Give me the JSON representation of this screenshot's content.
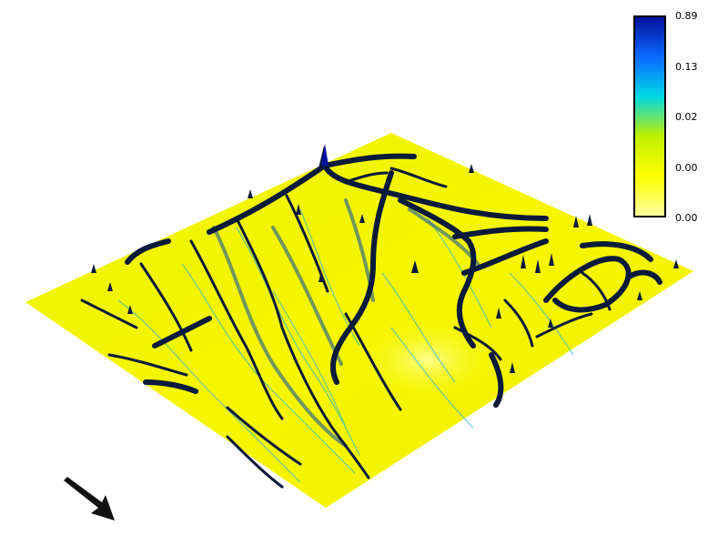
{
  "chart_data": {
    "type": "surface",
    "title": "",
    "colorbar": {
      "ticks": [
        "0.89",
        "0.13",
        "0.02",
        "0.00",
        "0.00"
      ],
      "colors": [
        "#00109a",
        "#0a6aff",
        "#00d8e6",
        "#bff000",
        "#ffff00",
        "#ffffa0"
      ],
      "position": "top-right",
      "scale": "log"
    },
    "surface_colors": {
      "base": "#f4f400",
      "ridge_dark": "#0a1a3a",
      "ridge_mid": "#1a4a8a",
      "streak": "#2ab8c8",
      "peak": "#0010a0"
    },
    "orientation_arrow": "north-arrow"
  }
}
